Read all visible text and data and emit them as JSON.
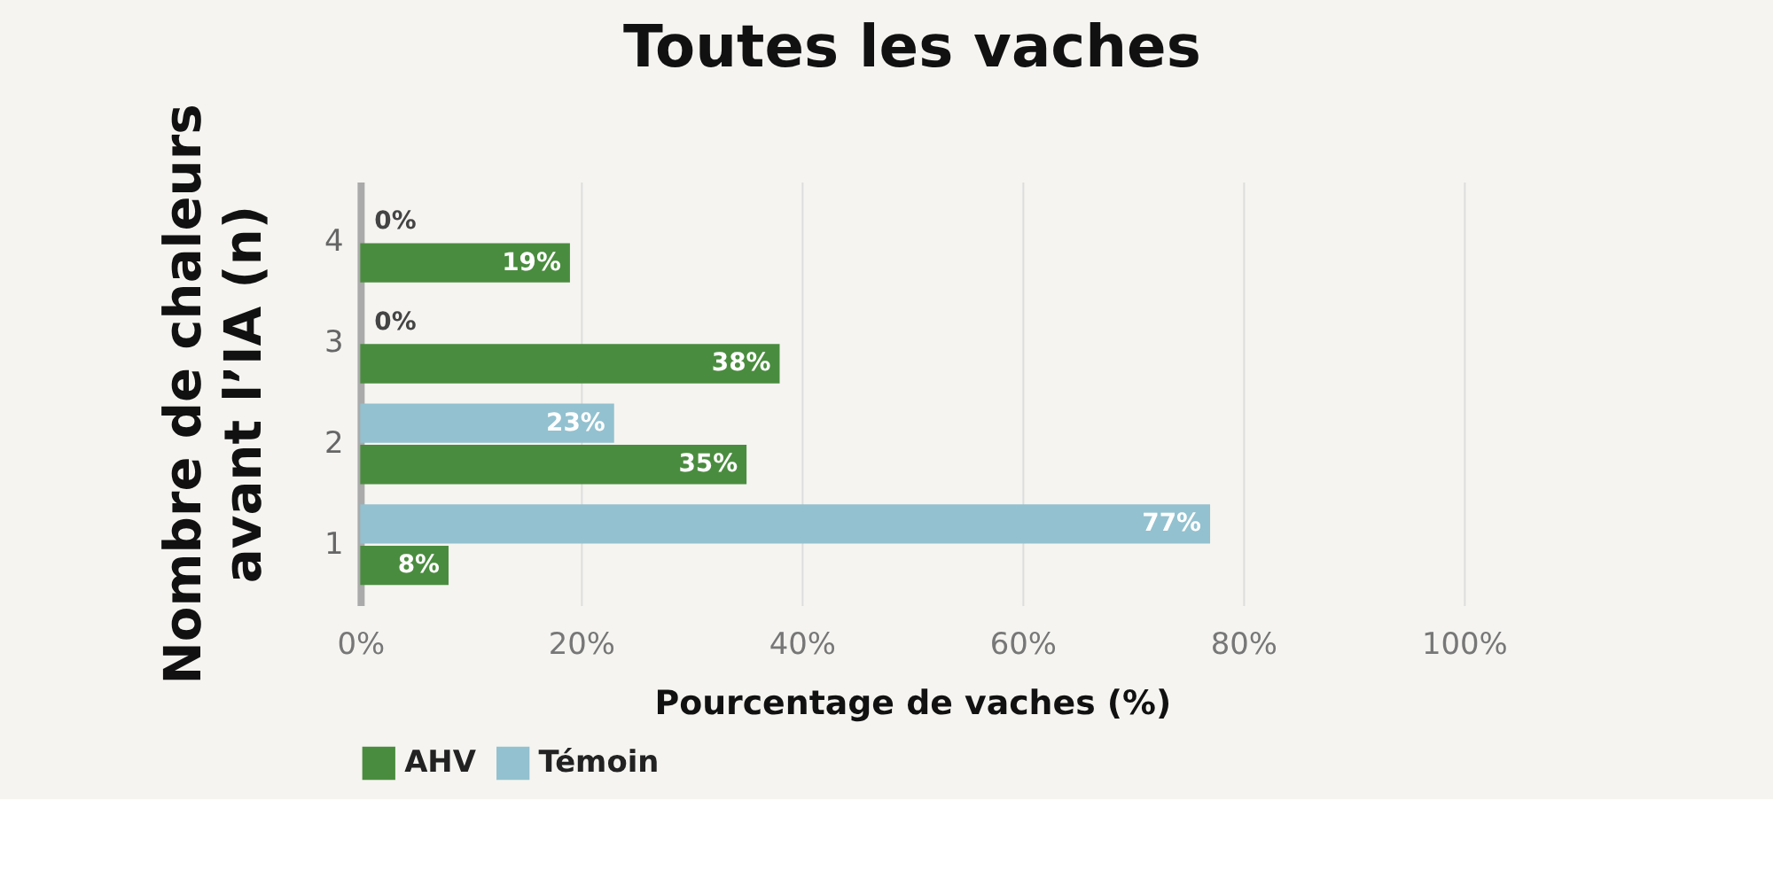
{
  "chart_data": {
    "type": "bar",
    "orientation": "horizontal",
    "title": "Toutes les vaches",
    "xlabel": "Pourcentage de vaches (%)",
    "ylabel": "Nombre de chaleurs\navant l’IA (n)",
    "categories": [
      "4",
      "3",
      "2",
      "1"
    ],
    "series": [
      {
        "name": "AHV",
        "color": "#4a8c3f",
        "values": [
          19,
          38,
          35,
          8
        ],
        "value_labels": [
          "19%",
          "38%",
          "35%",
          "8%"
        ]
      },
      {
        "name": "Témoin",
        "color": "#93c1cf",
        "values": [
          0,
          0,
          23,
          77
        ],
        "value_labels": [
          "0%",
          "0%",
          "23%",
          "77%"
        ]
      }
    ],
    "xlim": [
      0,
      100
    ],
    "xticks": [
      {
        "value": 0,
        "label": "0%"
      },
      {
        "value": 20,
        "label": "20%"
      },
      {
        "value": 40,
        "label": "40%"
      },
      {
        "value": 60,
        "label": "60%"
      },
      {
        "value": 80,
        "label": "80%"
      },
      {
        "value": 100,
        "label": "100%"
      }
    ],
    "grid": "x",
    "legend": "bottom"
  }
}
